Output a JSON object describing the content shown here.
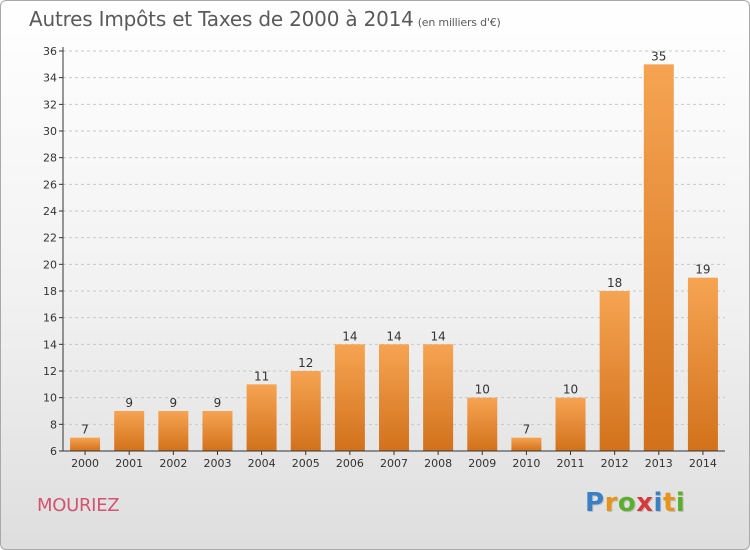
{
  "header": {
    "title": "Autres Impôts et Taxes de 2000 à 2014",
    "subtitle": "(en milliers d'€)"
  },
  "place_name": "MOURIEZ",
  "logo": {
    "letters": [
      "P",
      "r",
      "o",
      "x",
      "i",
      "t",
      "i"
    ],
    "colors": [
      "#3b7fc4",
      "#e8941a",
      "#5cae2e",
      "#d63a3a",
      "#3b7fc4",
      "#e8941a",
      "#5cae2e"
    ]
  },
  "colors": {
    "bar_top": "#f6a452",
    "bar_bottom": "#d2711c",
    "axis": "#333333",
    "grid": "#c8c8c8",
    "place": "#d2546e"
  },
  "chart_data": {
    "type": "bar",
    "categories": [
      "2000",
      "2001",
      "2002",
      "2003",
      "2004",
      "2005",
      "2006",
      "2007",
      "2008",
      "2009",
      "2010",
      "2011",
      "2012",
      "2013",
      "2014"
    ],
    "values": [
      7,
      9,
      9,
      9,
      11,
      12,
      14,
      14,
      14,
      10,
      7,
      10,
      18,
      35,
      19
    ],
    "ylim": [
      6,
      36
    ],
    "yticks": [
      6,
      8,
      10,
      12,
      14,
      16,
      18,
      20,
      22,
      24,
      26,
      28,
      30,
      32,
      34,
      36
    ],
    "grid": "horizontal dashed",
    "data_labels": true
  }
}
